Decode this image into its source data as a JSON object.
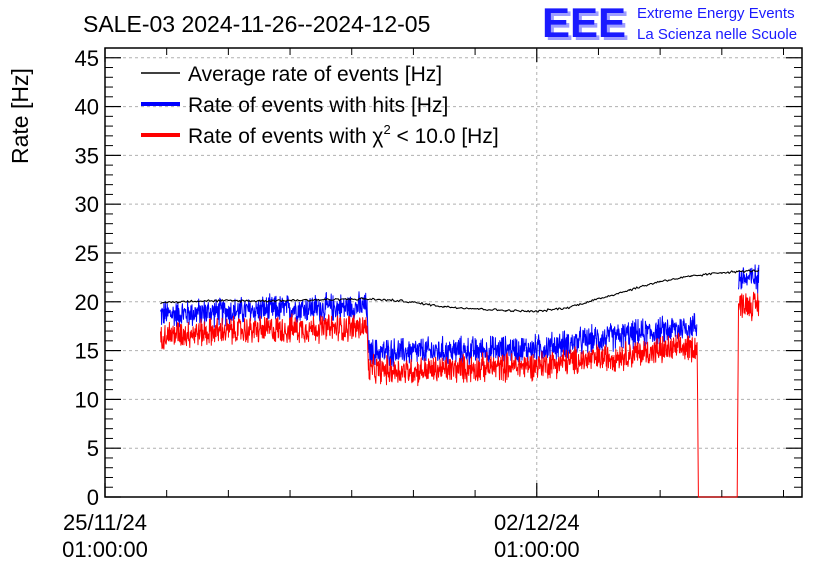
{
  "chart_data": {
    "type": "line",
    "title": "SALE-03 2024-11-26--2024-12-05",
    "ylabel": "Rate [Hz]",
    "xlabel": "",
    "ylim": [
      0,
      46
    ],
    "y_ticks": [
      0,
      5,
      10,
      15,
      20,
      25,
      30,
      35,
      40,
      45
    ],
    "x_range_days": [
      0,
      11.3
    ],
    "x_ticks": [
      {
        "day": 0,
        "line1": "25/11/24",
        "line2": "01:00:00"
      },
      {
        "day": 7,
        "line1": "02/12/24",
        "line2": "01:00:00"
      }
    ],
    "grid": true,
    "legend_position": "top-left",
    "series": [
      {
        "name": "Average rate of events [Hz]",
        "color": "#000000",
        "noise": 0.15,
        "points": [
          [
            0.9,
            19.9
          ],
          [
            1.5,
            20.1
          ],
          [
            2.5,
            20.1
          ],
          [
            3.5,
            20.2
          ],
          [
            4.2,
            20.3
          ],
          [
            4.8,
            20.1
          ],
          [
            5.5,
            19.5
          ],
          [
            6.5,
            19.1
          ],
          [
            7.0,
            19.0
          ],
          [
            7.5,
            19.4
          ],
          [
            8.0,
            20.3
          ],
          [
            8.5,
            21.2
          ],
          [
            9.0,
            22.1
          ],
          [
            9.5,
            22.6
          ],
          [
            10.0,
            23.0
          ],
          [
            10.6,
            23.2
          ]
        ]
      },
      {
        "name": "Rate of events with hits [Hz]",
        "color": "#0000ff",
        "noise": 1.7,
        "points": [
          [
            0.9,
            18.7
          ],
          [
            2.0,
            19.0
          ],
          [
            3.0,
            19.3
          ],
          [
            4.25,
            19.5
          ],
          [
            4.27,
            14.8
          ],
          [
            5.0,
            14.9
          ],
          [
            6.0,
            15.0
          ],
          [
            7.0,
            15.2
          ],
          [
            8.0,
            16.2
          ],
          [
            9.0,
            17.0
          ],
          [
            9.6,
            17.6
          ],
          [
            9.62,
            null
          ],
          [
            10.25,
            null
          ],
          [
            10.27,
            22.4
          ],
          [
            10.6,
            22.4
          ]
        ]
      },
      {
        "name": "Rate of events with χ² < 10.0 [Hz]",
        "color": "#ff0000",
        "noise": 1.7,
        "points": [
          [
            0.9,
            16.6
          ],
          [
            2.0,
            17.0
          ],
          [
            3.0,
            17.2
          ],
          [
            4.25,
            17.4
          ],
          [
            4.27,
            13.0
          ],
          [
            5.0,
            12.9
          ],
          [
            6.0,
            13.2
          ],
          [
            7.0,
            13.5
          ],
          [
            8.0,
            14.2
          ],
          [
            9.0,
            15.0
          ],
          [
            9.6,
            15.4
          ],
          [
            9.62,
            0
          ],
          [
            10.25,
            0
          ],
          [
            10.27,
            19.8
          ],
          [
            10.6,
            19.6
          ]
        ]
      }
    ]
  },
  "legend": {
    "avg_label": "Average rate of events [Hz]",
    "hits_label": "Rate of events with hits [Hz]",
    "chi_prefix": "Rate of events with χ",
    "chi_sup": "2",
    "chi_suffix": " < 10.0 [Hz]"
  },
  "logo": {
    "letters": "EEE",
    "line1": "Extreme Energy Events",
    "line2": "La Scienza nelle Scuole",
    "color": "#1a1aff"
  }
}
